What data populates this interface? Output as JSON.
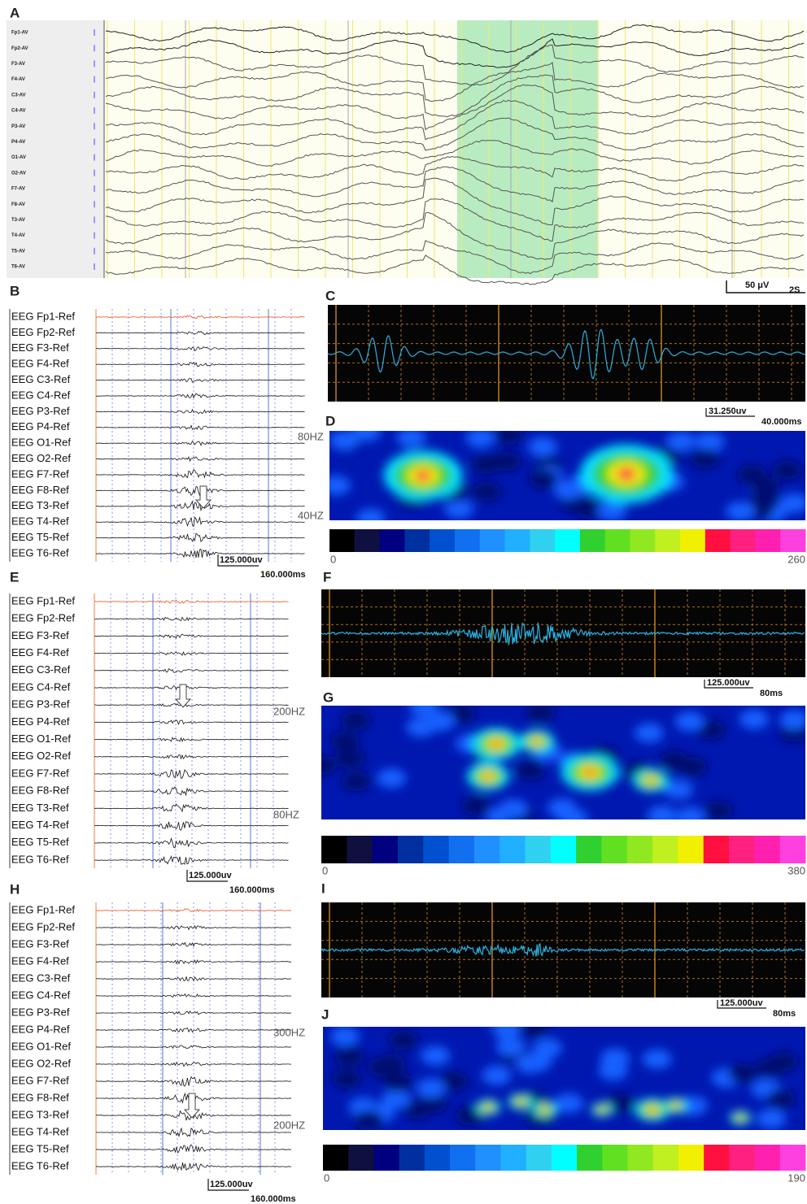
{
  "panels": {
    "A": {
      "letter": "A",
      "channels": [
        "Fp1-AV",
        "Fp2-AV",
        "F3-AV",
        "F4-AV",
        "C3-AV",
        "C4-AV",
        "P3-AV",
        "P4-AV",
        "O1-AV",
        "O2-AV",
        "F7-AV",
        "F8-AV",
        "T3-AV",
        "T4-AV",
        "T5-AV",
        "T6-AV"
      ],
      "scale_amplitude": "50 μV",
      "scale_time": "2S"
    },
    "B": {
      "letter": "B",
      "channels": [
        "EEG Fp1-Ref",
        "EEG Fp2-Ref",
        "EEG F3-Ref",
        "EEG F4-Ref",
        "EEG C3-Ref",
        "EEG C4-Ref",
        "EEG P3-Ref",
        "EEG P4-Ref",
        "EEG O1-Ref",
        "EEG O2-Ref",
        "EEG F7-Ref",
        "EEG F8-Ref",
        "EEG T3-Ref",
        "EEG T4-Ref",
        "EEG T5-Ref",
        "EEG T6-Ref"
      ],
      "scale_amplitude": "125.000uv",
      "scale_time": "160.000ms"
    },
    "C": {
      "letter": "C",
      "scale_amplitude": "31.250uv",
      "scale_time": "40.000ms"
    },
    "D": {
      "letter": "D",
      "freq_high": "80HZ",
      "freq_low": "40HZ",
      "colorbar_min": "0",
      "colorbar_max": "260"
    },
    "E": {
      "letter": "E",
      "channels": [
        "EEG Fp1-Ref",
        "EEG Fp2-Ref",
        "EEG F3-Ref",
        "EEG F4-Ref",
        "EEG C3-Ref",
        "EEG C4-Ref",
        "EEG P3-Ref",
        "EEG P4-Ref",
        "EEG O1-Ref",
        "EEG O2-Ref",
        "EEG F7-Ref",
        "EEG F8-Ref",
        "EEG T3-Ref",
        "EEG T4-Ref",
        "EEG T5-Ref",
        "EEG T6-Ref"
      ],
      "scale_amplitude": "125.000uv",
      "scale_time": "160.000ms"
    },
    "F": {
      "letter": "F",
      "scale_amplitude": "125.000uv",
      "scale_time": "80ms"
    },
    "G": {
      "letter": "G",
      "freq_high": "200HZ",
      "freq_low": "80HZ",
      "colorbar_min": "0",
      "colorbar_max": "380"
    },
    "H": {
      "letter": "H",
      "channels": [
        "EEG Fp1-Ref",
        "EEG Fp2-Ref",
        "EEG F3-Ref",
        "EEG F4-Ref",
        "EEG C3-Ref",
        "EEG C4-Ref",
        "EEG P3-Ref",
        "EEG P4-Ref",
        "EEG O1-Ref",
        "EEG O2-Ref",
        "EEG F7-Ref",
        "EEG F8-Ref",
        "EEG T3-Ref",
        "EEG T4-Ref",
        "EEG T5-Ref",
        "EEG T6-Ref"
      ],
      "scale_amplitude": "125.000uv",
      "scale_time": "160.000ms"
    },
    "I": {
      "letter": "I",
      "scale_amplitude": "125.000uv",
      "scale_time": "80ms"
    },
    "J": {
      "letter": "J",
      "freq_high": "300HZ",
      "freq_low": "200HZ",
      "colorbar_min": "0",
      "colorbar_max": "190"
    }
  }
}
